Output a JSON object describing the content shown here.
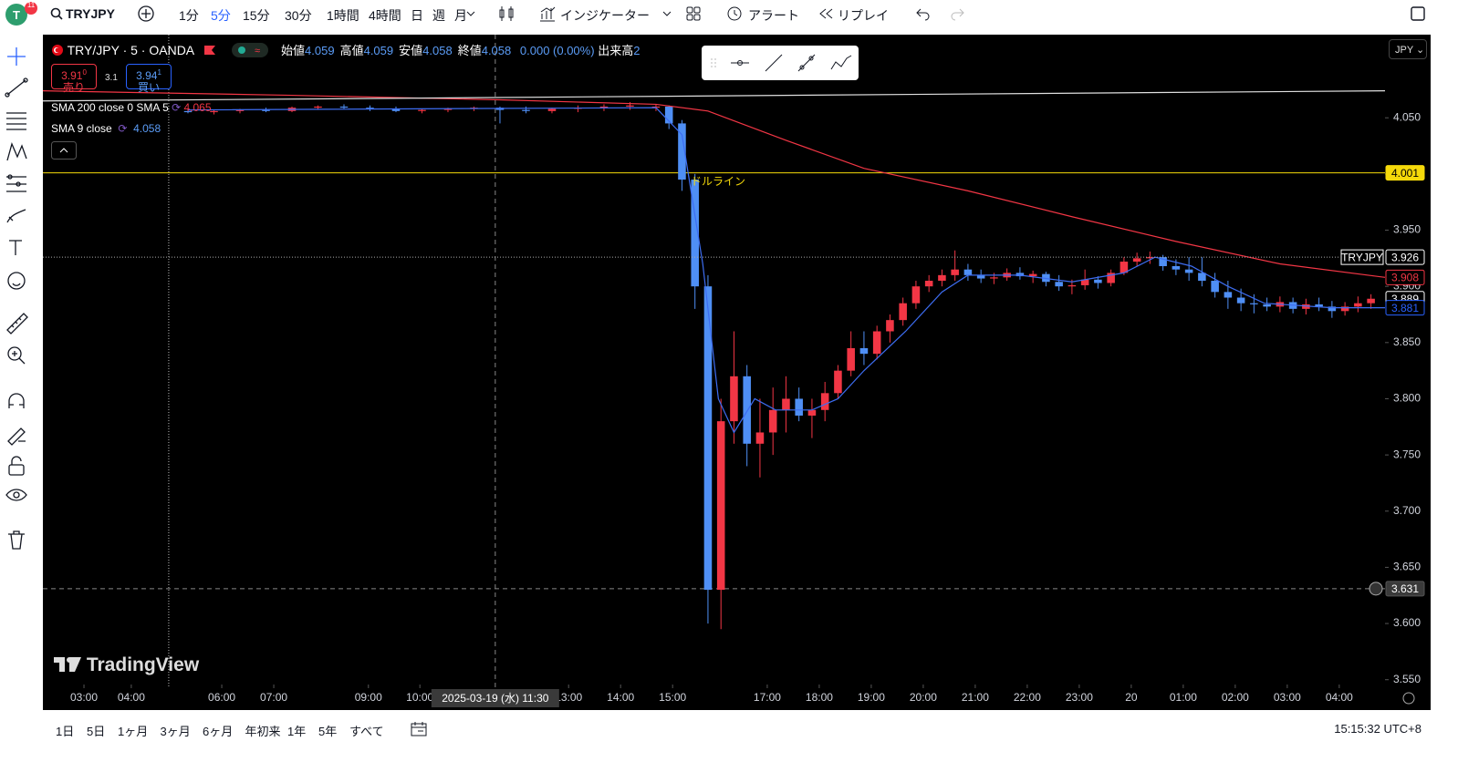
{
  "toolbar": {
    "badge": "11",
    "symbol": "TRYJPY",
    "intervals": [
      "1分",
      "5分",
      "15分",
      "30分",
      "1時間",
      "4時間",
      "日",
      "週",
      "月"
    ],
    "active_interval": 1,
    "indicators": "インジケーター",
    "alert": "アラート",
    "replay": "リプレイ"
  },
  "legend": {
    "title": "TRY/JPY · 5 · OANDA",
    "ohlc": [
      {
        "label": "始値",
        "value": 4.059
      },
      {
        "label": "高値",
        "value": 4.059
      },
      {
        "label": "安値",
        "value": 4.058
      },
      {
        "label": "終値",
        "value": 4.058
      }
    ],
    "change": "0.000 (0.00%)",
    "volume_label": "出来高",
    "volume": 2
  },
  "trade": {
    "sell": {
      "price": "3.91",
      "pip": "0",
      "label": "売り"
    },
    "spread": "3.1",
    "buy": {
      "price": "3.94",
      "pip": "1",
      "label": "買い"
    }
  },
  "studies": [
    {
      "name": "SMA 200 close 0 SMA 5",
      "value": 4.065
    },
    {
      "name": "SMA 9 close",
      "value": 4.058
    }
  ],
  "currency": "JPY",
  "watermark": "TradingView",
  "bottom": {
    "ranges": [
      "1日",
      "5日",
      "1ヶ月",
      "3ヶ月",
      "6ヶ月",
      "年初来",
      "1年",
      "5年",
      "すべて"
    ],
    "clock": "15:15:32 UTC+8"
  },
  "chart_data": {
    "type": "candlestick",
    "xlim": [
      -0.79,
      25.02
    ],
    "ylim": [
      3.523,
      4.124
    ],
    "xticks": [
      {
        "value": 0,
        "label": "03:00"
      },
      {
        "value": 0.91,
        "label": "04:00"
      },
      {
        "value": 2.65,
        "label": "06:00"
      },
      {
        "value": 3.65,
        "label": "07:00"
      },
      {
        "value": 5.47,
        "label": "09:00"
      },
      {
        "value": 6.46,
        "label": "10:00"
      },
      {
        "value": 9.32,
        "label": "13:00"
      },
      {
        "value": 10.32,
        "label": "14:00"
      },
      {
        "value": 11.32,
        "label": "15:00"
      },
      {
        "value": 13.14,
        "label": "17:00"
      },
      {
        "value": 14.14,
        "label": "18:00"
      },
      {
        "value": 15.14,
        "label": "19:00"
      },
      {
        "value": 16.14,
        "label": "20:00"
      },
      {
        "value": 17.14,
        "label": "21:00"
      },
      {
        "value": 18.14,
        "label": "22:00"
      },
      {
        "value": 19.14,
        "label": "23:00"
      },
      {
        "value": 20.14,
        "label": "20"
      },
      {
        "value": 21.14,
        "label": "01:00"
      },
      {
        "value": 22.14,
        "label": "02:00"
      },
      {
        "value": 23.14,
        "label": "03:00"
      },
      {
        "value": 24.14,
        "label": "04:00"
      }
    ],
    "yticks": [
      {
        "value": 3.55,
        "label": "3.550"
      },
      {
        "value": 3.6,
        "label": "3.600"
      },
      {
        "value": 3.65,
        "label": "3.650"
      },
      {
        "value": 3.7,
        "label": "3.700"
      },
      {
        "value": 3.75,
        "label": "3.750"
      },
      {
        "value": 3.8,
        "label": "3.800"
      },
      {
        "value": 3.85,
        "label": "3.850"
      },
      {
        "value": 3.9,
        "label": "3.900"
      },
      {
        "value": 3.95,
        "label": "3.950"
      },
      {
        "value": 4.0,
        "label": "4.000"
      },
      {
        "value": 4.05,
        "label": "4.050"
      }
    ],
    "up_color": "#f23645",
    "down_color": "#4f8ff5",
    "x": [
      2.0,
      2.5,
      3.0,
      3.5,
      4.0,
      4.5,
      5.0,
      5.5,
      6.0,
      6.5,
      7.0,
      7.5,
      8.0,
      8.5,
      9.0,
      9.5,
      10.0,
      10.5,
      11.0,
      11.25,
      11.5,
      11.75,
      12.0,
      12.25,
      12.5,
      12.75,
      13.0,
      13.25,
      13.5,
      13.75,
      14.0,
      14.25,
      14.5,
      14.75,
      15.0,
      15.25,
      15.5,
      15.75,
      16.0,
      16.25,
      16.5,
      16.75,
      17.0,
      17.25,
      17.5,
      17.75,
      18.0,
      18.25,
      18.5,
      18.75,
      19.0,
      19.25,
      19.5,
      19.75,
      20.0,
      20.25,
      20.5,
      20.75,
      21.0,
      21.25,
      21.5,
      21.75,
      22.0,
      22.25,
      22.5,
      22.75,
      23.0,
      23.25,
      23.5,
      23.75,
      24.0,
      24.25,
      24.5,
      24.75
    ],
    "open": [
      4.056,
      4.055,
      4.056,
      4.057,
      4.056,
      4.059,
      4.06,
      4.059,
      4.058,
      4.056,
      4.057,
      4.058,
      4.059,
      4.057,
      4.056,
      4.058,
      4.059,
      4.06,
      4.059,
      4.06,
      4.045,
      3.995,
      3.9,
      3.63,
      3.78,
      3.82,
      3.76,
      3.77,
      3.79,
      3.8,
      3.785,
      3.79,
      3.805,
      3.825,
      3.845,
      3.84,
      3.86,
      3.87,
      3.885,
      3.9,
      3.905,
      3.91,
      3.915,
      3.91,
      3.907,
      3.908,
      3.912,
      3.909,
      3.911,
      3.904,
      3.9,
      3.901,
      3.906,
      3.903,
      3.912,
      3.922,
      3.925,
      3.926,
      3.918,
      3.915,
      3.912,
      3.905,
      3.895,
      3.89,
      3.885,
      3.884,
      3.882,
      3.886,
      3.88,
      3.884,
      3.882,
      3.878,
      3.882,
      3.885
    ],
    "high": [
      4.058,
      4.057,
      4.058,
      4.059,
      4.06,
      4.061,
      4.062,
      4.061,
      4.06,
      4.058,
      4.059,
      4.06,
      4.06,
      4.06,
      4.059,
      4.061,
      4.062,
      4.064,
      4.062,
      4.061,
      4.048,
      4.0,
      3.91,
      3.8,
      3.86,
      3.83,
      3.8,
      3.81,
      3.82,
      3.81,
      3.8,
      3.815,
      3.83,
      3.86,
      3.86,
      3.865,
      3.875,
      3.89,
      3.905,
      3.91,
      3.915,
      3.932,
      3.92,
      3.915,
      3.912,
      3.916,
      3.917,
      3.914,
      3.913,
      3.91,
      3.906,
      3.915,
      3.909,
      3.915,
      3.926,
      3.93,
      3.931,
      3.928,
      3.924,
      3.926,
      3.926,
      3.912,
      3.905,
      3.898,
      3.893,
      3.89,
      3.891,
      3.89,
      3.889,
      3.89,
      3.887,
      3.886,
      3.891,
      3.893
    ],
    "low": [
      4.054,
      4.053,
      4.054,
      4.055,
      4.055,
      4.057,
      4.058,
      4.056,
      4.055,
      4.054,
      4.055,
      4.056,
      4.045,
      4.054,
      4.054,
      4.055,
      4.056,
      4.057,
      4.056,
      4.04,
      3.985,
      3.88,
      3.6,
      3.595,
      3.76,
      3.74,
      3.73,
      3.75,
      3.77,
      3.78,
      3.765,
      3.78,
      3.8,
      3.82,
      3.83,
      3.835,
      3.85,
      3.865,
      3.88,
      3.895,
      3.9,
      3.905,
      3.905,
      3.903,
      3.902,
      3.905,
      3.906,
      3.903,
      3.9,
      3.896,
      3.893,
      3.897,
      3.898,
      3.9,
      3.91,
      3.918,
      3.92,
      3.914,
      3.91,
      3.905,
      3.9,
      3.89,
      3.88,
      3.878,
      3.876,
      3.878,
      3.877,
      3.876,
      3.875,
      3.878,
      3.872,
      3.874,
      3.877,
      3.88
    ],
    "close": [
      4.055,
      4.056,
      4.057,
      4.056,
      4.059,
      4.06,
      4.059,
      4.058,
      4.056,
      4.057,
      4.058,
      4.059,
      4.057,
      4.056,
      4.058,
      4.059,
      4.06,
      4.061,
      4.06,
      4.045,
      3.995,
      3.9,
      3.63,
      3.78,
      3.82,
      3.76,
      3.77,
      3.79,
      3.8,
      3.785,
      3.79,
      3.805,
      3.825,
      3.845,
      3.84,
      3.86,
      3.87,
      3.885,
      3.9,
      3.905,
      3.91,
      3.915,
      3.91,
      3.907,
      3.908,
      3.912,
      3.909,
      3.911,
      3.904,
      3.9,
      3.901,
      3.906,
      3.903,
      3.912,
      3.922,
      3.925,
      3.926,
      3.918,
      3.915,
      3.912,
      3.905,
      3.895,
      3.89,
      3.885,
      3.884,
      3.882,
      3.886,
      3.88,
      3.884,
      3.882,
      3.878,
      3.882,
      3.885,
      3.889
    ],
    "lines": [
      {
        "color": "#f23645",
        "x": [
          -0.79,
          4,
          8,
          11,
          12,
          13.5,
          15,
          17,
          19,
          21,
          23,
          25.02
        ],
        "values": [
          4.074,
          4.07,
          4.066,
          4.062,
          4.056,
          4.03,
          4.005,
          3.985,
          3.962,
          3.94,
          3.92,
          3.908
        ]
      },
      {
        "color": "#3d6df2",
        "x": [
          2,
          11,
          11.5,
          11.9,
          12.2,
          12.5,
          12.9,
          13.3,
          14,
          14.5,
          15,
          15.8,
          16.5,
          17,
          18,
          19,
          20,
          20.6,
          21.3,
          22,
          22.7,
          24,
          25.02
        ],
        "values": [
          4.057,
          4.059,
          4.035,
          3.92,
          3.8,
          3.77,
          3.8,
          3.79,
          3.79,
          3.8,
          3.825,
          3.86,
          3.895,
          3.91,
          3.91,
          3.904,
          3.912,
          3.926,
          3.918,
          3.9,
          3.885,
          3.881,
          3.881
        ]
      },
      {
        "color": "#e0e0e0",
        "x": [
          -0.79,
          25.02
        ],
        "values": [
          4.065,
          4.074
        ]
      }
    ],
    "hline": {
      "value": 4.001,
      "color": "#f5d90a",
      "label": "ドルライン"
    },
    "vline": 1.63,
    "price_labels": [
      {
        "tag": "TRYJPY",
        "value": 3.926,
        "color": "#ffffff"
      },
      {
        "value": 3.908,
        "color": "#f23645"
      },
      {
        "value": 3.889,
        "color": "#ffffff"
      },
      {
        "value": 3.881,
        "color": "#2962ff"
      }
    ],
    "crosshair": {
      "x": 7.91,
      "y": 3.631,
      "time_label": "2025-03-19 (水)  11:30"
    }
  }
}
